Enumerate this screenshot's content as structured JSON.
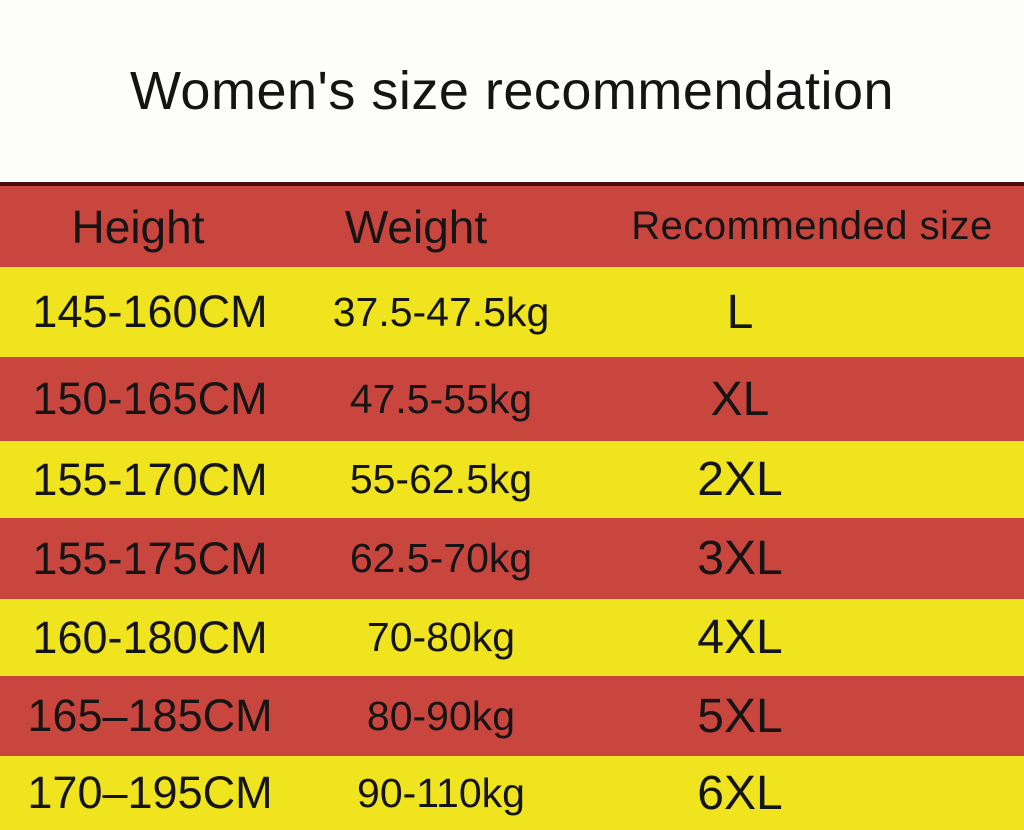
{
  "title": "Women's size recommendation",
  "colors": {
    "row_red": "#c9463f",
    "row_yellow": "#f0e41e",
    "table_top_line": "#470f0b",
    "text": "#151515",
    "background": "#fdfdfc"
  },
  "table": {
    "headers": [
      "Height",
      "Weight",
      "Recommended size"
    ],
    "rows": [
      {
        "height": "145-160CM",
        "weight": "37.5-47.5kg",
        "size": "L"
      },
      {
        "height": "150-165CM",
        "weight": "47.5-55kg",
        "size": "XL"
      },
      {
        "height": "155-170CM",
        "weight": "55-62.5kg",
        "size": "2XL"
      },
      {
        "height": "155-175CM",
        "weight": "62.5-70kg",
        "size": "3XL"
      },
      {
        "height": "160-180CM",
        "weight": "70-80kg",
        "size": "4XL"
      },
      {
        "height": "165–185CM",
        "weight": "80-90kg",
        "size": "5XL"
      },
      {
        "height": "170–195CM",
        "weight": "90-110kg",
        "size": "6XL"
      }
    ]
  },
  "chart_data": {
    "type": "table",
    "title": "Women's size recommendation",
    "columns": [
      "Height",
      "Weight",
      "Recommended size"
    ],
    "rows": [
      [
        "145-160CM",
        "37.5-47.5kg",
        "L"
      ],
      [
        "150-165CM",
        "47.5-55kg",
        "XL"
      ],
      [
        "155-170CM",
        "55-62.5kg",
        "2XL"
      ],
      [
        "155-175CM",
        "62.5-70kg",
        "3XL"
      ],
      [
        "160-180CM",
        "70-80kg",
        "4XL"
      ],
      [
        "165-185CM",
        "80-90kg",
        "5XL"
      ],
      [
        "170-195CM",
        "90-110kg",
        "6XL"
      ]
    ],
    "header_color": "red",
    "row_colors": [
      "yellow",
      "red",
      "yellow",
      "red",
      "yellow",
      "red",
      "yellow"
    ]
  }
}
